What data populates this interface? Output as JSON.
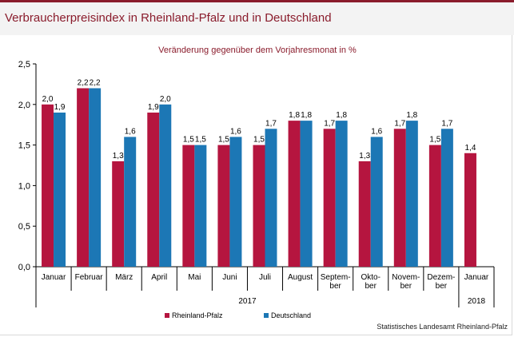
{
  "header": {
    "title": "Verbraucherpreisindex in Rheinland-Pfalz und in Deutschland"
  },
  "source": "Statistisches Landesamt Rheinland-Pfalz",
  "colors": {
    "accent": "#8a1c2c",
    "series1": "#b5153f",
    "series2": "#1c77b5"
  },
  "chart_data": {
    "type": "bar",
    "title": "Veränderung gegenüber dem Vorjahresmonat in %",
    "categories": [
      [
        "Januar"
      ],
      [
        "Februar"
      ],
      [
        "März"
      ],
      [
        "April"
      ],
      [
        "Mai"
      ],
      [
        "Juni"
      ],
      [
        "Juli"
      ],
      [
        "August"
      ],
      [
        "Septem-",
        "ber"
      ],
      [
        "Okto-",
        "ber"
      ],
      [
        "Novem-",
        "ber"
      ],
      [
        "Dezem-",
        "ber"
      ],
      [
        "Januar"
      ]
    ],
    "year_groups": [
      {
        "label": "2017",
        "from": 0,
        "to": 11
      },
      {
        "label": "2018",
        "from": 12,
        "to": 12
      }
    ],
    "series": [
      {
        "name": "Rheinland-Pfalz",
        "color": "#b5153f",
        "values": [
          2.0,
          2.2,
          1.3,
          1.9,
          1.5,
          1.5,
          1.5,
          1.8,
          1.7,
          1.3,
          1.7,
          1.5,
          1.4
        ]
      },
      {
        "name": "Deutschland",
        "color": "#1c77b5",
        "values": [
          1.9,
          2.2,
          1.6,
          2.0,
          1.5,
          1.6,
          1.7,
          1.8,
          1.8,
          1.6,
          1.8,
          1.7,
          null
        ]
      }
    ],
    "ylim": [
      0,
      2.5
    ],
    "yticks": [
      "0,0",
      "0,5",
      "1,0",
      "1,5",
      "2,0",
      "2,5"
    ],
    "grid": false,
    "legend": "bottom-center"
  }
}
